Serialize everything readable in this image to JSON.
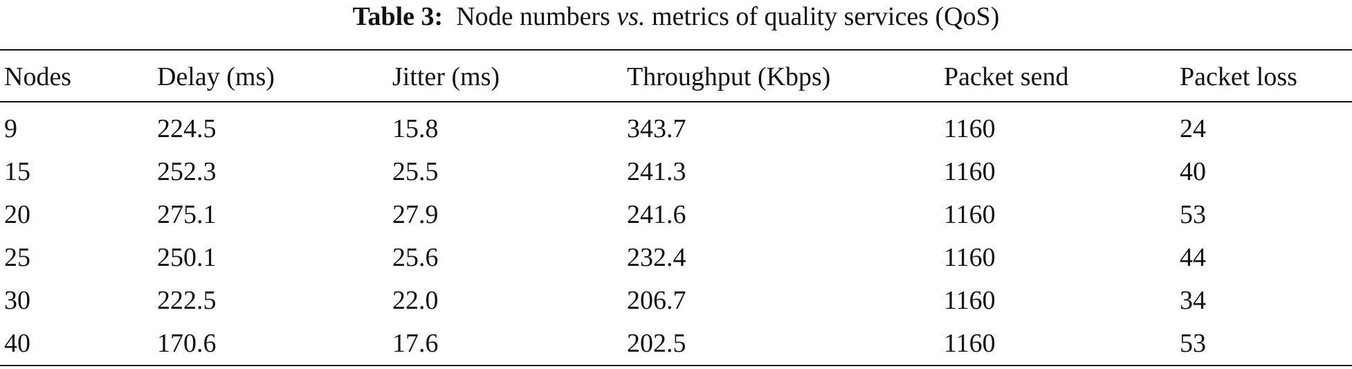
{
  "caption": {
    "label": "Table 3:",
    "text_before": "Node numbers",
    "emphasis": "vs.",
    "text_after": "metrics of quality services (QoS)"
  },
  "table": {
    "header": [
      "Nodes",
      "Delay (ms)",
      "Jitter (ms)",
      "Throughput (Kbps)",
      "Packet send",
      "Packet loss"
    ],
    "rows": [
      [
        "9",
        "224.5",
        "15.8",
        "343.7",
        "1160",
        "24"
      ],
      [
        "15",
        "252.3",
        "25.5",
        "241.3",
        "1160",
        "40"
      ],
      [
        "20",
        "275.1",
        "27.9",
        "241.6",
        "1160",
        "53"
      ],
      [
        "25",
        "250.1",
        "25.6",
        "232.4",
        "1160",
        "44"
      ],
      [
        "30",
        "222.5",
        "22.0",
        "206.7",
        "1160",
        "34"
      ],
      [
        "40",
        "170.6",
        "17.6",
        "202.5",
        "1160",
        "53"
      ]
    ]
  }
}
